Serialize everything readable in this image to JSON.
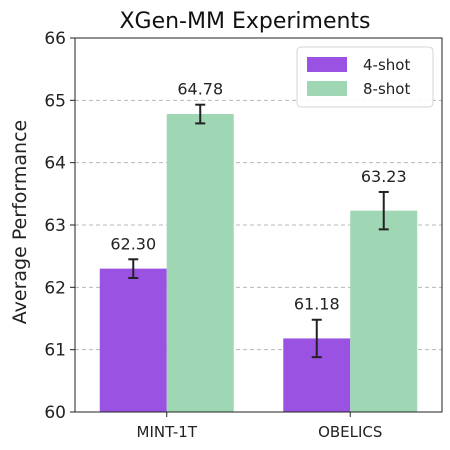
{
  "chart_data": {
    "type": "bar",
    "title": "XGen-MM Experiments",
    "xlabel": "",
    "ylabel": "Average Performance",
    "ylim": [
      60,
      66
    ],
    "yticks": [
      60,
      61,
      62,
      63,
      64,
      65,
      66
    ],
    "grid": true,
    "legend_position": "top-right",
    "categories": [
      "MINT-1T",
      "OBELICS"
    ],
    "series": [
      {
        "name": "4-shot",
        "color": "#9a52e3",
        "values": [
          62.3,
          61.18
        ],
        "value_labels": [
          "62.30",
          "61.18"
        ],
        "error": [
          0.15,
          0.3
        ]
      },
      {
        "name": "8-shot",
        "color": "#9fd6b3",
        "values": [
          64.78,
          63.23
        ],
        "value_labels": [
          "64.78",
          "63.23"
        ],
        "error": [
          0.15,
          0.3
        ]
      }
    ]
  }
}
